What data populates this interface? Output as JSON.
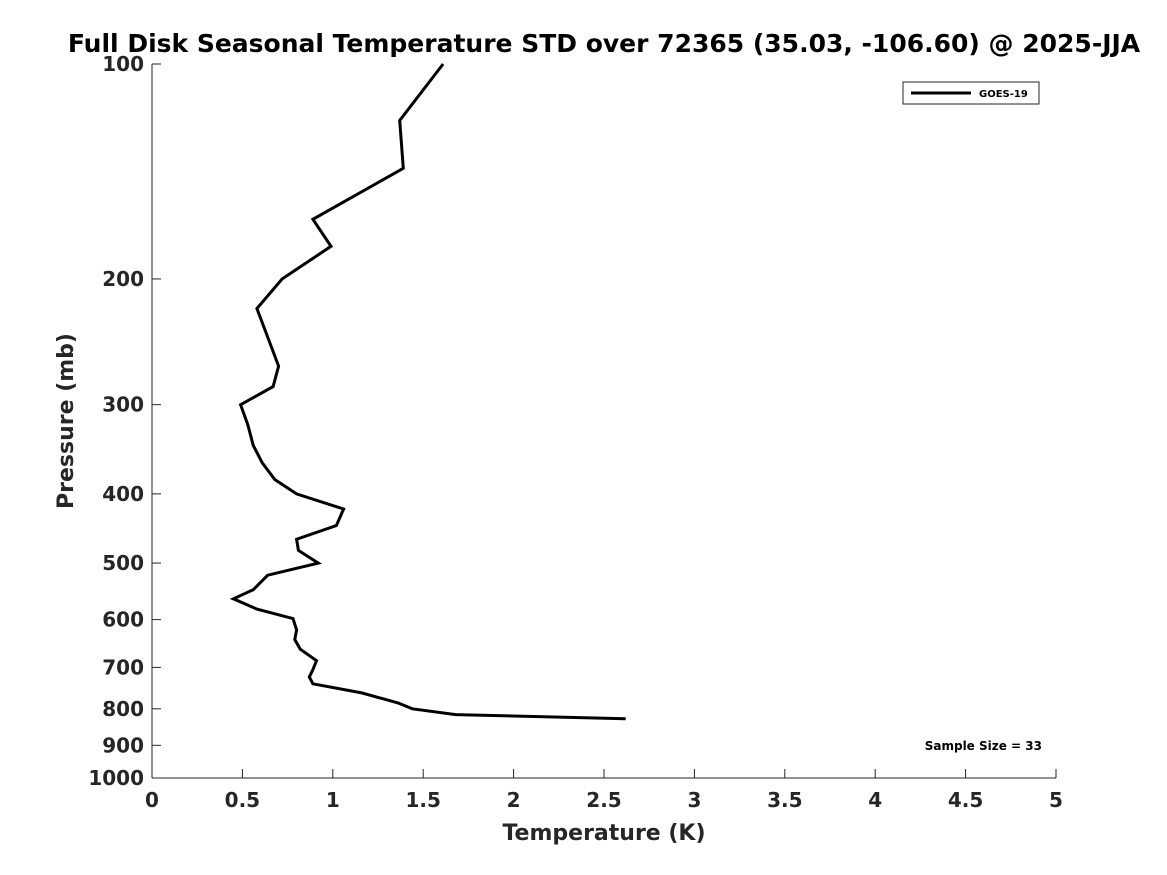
{
  "chart_data": {
    "type": "line",
    "title": "Full Disk Seasonal Temperature STD over 72365 (35.03, -106.60) @ 2025-JJA",
    "xlabel": "Temperature (K)",
    "ylabel": "Pressure (mb)",
    "xlim": [
      0,
      5
    ],
    "ylim": [
      1000,
      100
    ],
    "yscale": "log",
    "y_reversed": true,
    "xticks": [
      "0",
      "0.5",
      "1",
      "1.5",
      "2",
      "2.5",
      "3",
      "3.5",
      "4",
      "4.5",
      "5"
    ],
    "yticks": [
      "100",
      "200",
      "300",
      "400",
      "500",
      "600",
      "700",
      "800",
      "900",
      "1000"
    ],
    "grid": false,
    "legend_position": "top-right",
    "annotation": "Sample Size = 33",
    "series": [
      {
        "name": "GOES-19",
        "color": "#000000",
        "x": [
          1.61,
          1.37,
          1.39,
          0.89,
          0.99,
          0.72,
          0.58,
          0.65,
          0.7,
          0.67,
          0.49,
          0.53,
          0.56,
          0.61,
          0.68,
          0.8,
          1.06,
          1.02,
          0.8,
          0.81,
          0.92,
          0.64,
          0.56,
          0.45,
          0.58,
          0.78,
          0.8,
          0.79,
          0.82,
          0.91,
          0.89,
          0.87,
          0.89,
          1.16,
          1.36,
          1.44,
          1.68,
          2.62
        ],
        "y": [
          100,
          120,
          140,
          165,
          180,
          200,
          220,
          245,
          265,
          283,
          300,
          320,
          342,
          362,
          382,
          400,
          420,
          443,
          463,
          480,
          500,
          520,
          545,
          561,
          580,
          598,
          620,
          640,
          660,
          685,
          705,
          722,
          738,
          760,
          785,
          800,
          815,
          826
        ]
      }
    ]
  }
}
